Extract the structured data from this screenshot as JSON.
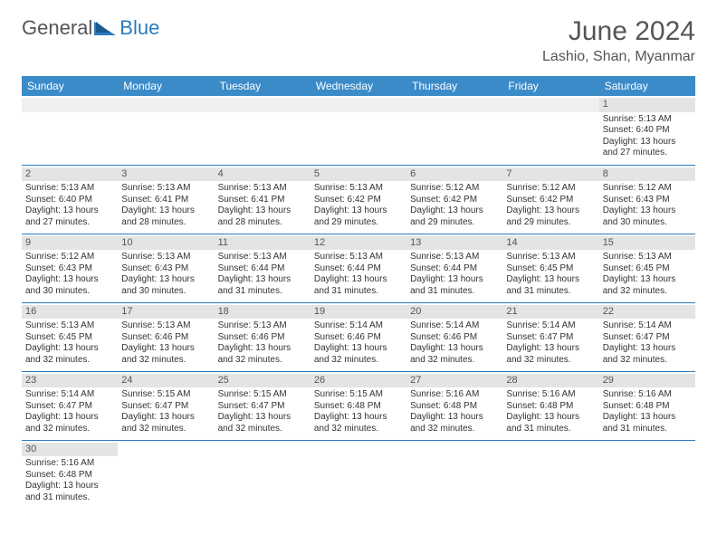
{
  "logo": {
    "part1": "General",
    "part2": "Blue"
  },
  "title": "June 2024",
  "location": "Lashio, Shan, Myanmar",
  "colors": {
    "header_bg": "#3b8bc9",
    "border": "#2b7bbf",
    "daynum_bg": "#e4e4e4",
    "text": "#333333",
    "title_text": "#555555"
  },
  "day_headers": [
    "Sunday",
    "Monday",
    "Tuesday",
    "Wednesday",
    "Thursday",
    "Friday",
    "Saturday"
  ],
  "weeks": [
    [
      null,
      null,
      null,
      null,
      null,
      null,
      {
        "n": "1",
        "sr": "Sunrise: 5:13 AM",
        "ss": "Sunset: 6:40 PM",
        "d1": "Daylight: 13 hours",
        "d2": "and 27 minutes."
      }
    ],
    [
      {
        "n": "2",
        "sr": "Sunrise: 5:13 AM",
        "ss": "Sunset: 6:40 PM",
        "d1": "Daylight: 13 hours",
        "d2": "and 27 minutes."
      },
      {
        "n": "3",
        "sr": "Sunrise: 5:13 AM",
        "ss": "Sunset: 6:41 PM",
        "d1": "Daylight: 13 hours",
        "d2": "and 28 minutes."
      },
      {
        "n": "4",
        "sr": "Sunrise: 5:13 AM",
        "ss": "Sunset: 6:41 PM",
        "d1": "Daylight: 13 hours",
        "d2": "and 28 minutes."
      },
      {
        "n": "5",
        "sr": "Sunrise: 5:13 AM",
        "ss": "Sunset: 6:42 PM",
        "d1": "Daylight: 13 hours",
        "d2": "and 29 minutes."
      },
      {
        "n": "6",
        "sr": "Sunrise: 5:12 AM",
        "ss": "Sunset: 6:42 PM",
        "d1": "Daylight: 13 hours",
        "d2": "and 29 minutes."
      },
      {
        "n": "7",
        "sr": "Sunrise: 5:12 AM",
        "ss": "Sunset: 6:42 PM",
        "d1": "Daylight: 13 hours",
        "d2": "and 29 minutes."
      },
      {
        "n": "8",
        "sr": "Sunrise: 5:12 AM",
        "ss": "Sunset: 6:43 PM",
        "d1": "Daylight: 13 hours",
        "d2": "and 30 minutes."
      }
    ],
    [
      {
        "n": "9",
        "sr": "Sunrise: 5:12 AM",
        "ss": "Sunset: 6:43 PM",
        "d1": "Daylight: 13 hours",
        "d2": "and 30 minutes."
      },
      {
        "n": "10",
        "sr": "Sunrise: 5:13 AM",
        "ss": "Sunset: 6:43 PM",
        "d1": "Daylight: 13 hours",
        "d2": "and 30 minutes."
      },
      {
        "n": "11",
        "sr": "Sunrise: 5:13 AM",
        "ss": "Sunset: 6:44 PM",
        "d1": "Daylight: 13 hours",
        "d2": "and 31 minutes."
      },
      {
        "n": "12",
        "sr": "Sunrise: 5:13 AM",
        "ss": "Sunset: 6:44 PM",
        "d1": "Daylight: 13 hours",
        "d2": "and 31 minutes."
      },
      {
        "n": "13",
        "sr": "Sunrise: 5:13 AM",
        "ss": "Sunset: 6:44 PM",
        "d1": "Daylight: 13 hours",
        "d2": "and 31 minutes."
      },
      {
        "n": "14",
        "sr": "Sunrise: 5:13 AM",
        "ss": "Sunset: 6:45 PM",
        "d1": "Daylight: 13 hours",
        "d2": "and 31 minutes."
      },
      {
        "n": "15",
        "sr": "Sunrise: 5:13 AM",
        "ss": "Sunset: 6:45 PM",
        "d1": "Daylight: 13 hours",
        "d2": "and 32 minutes."
      }
    ],
    [
      {
        "n": "16",
        "sr": "Sunrise: 5:13 AM",
        "ss": "Sunset: 6:45 PM",
        "d1": "Daylight: 13 hours",
        "d2": "and 32 minutes."
      },
      {
        "n": "17",
        "sr": "Sunrise: 5:13 AM",
        "ss": "Sunset: 6:46 PM",
        "d1": "Daylight: 13 hours",
        "d2": "and 32 minutes."
      },
      {
        "n": "18",
        "sr": "Sunrise: 5:13 AM",
        "ss": "Sunset: 6:46 PM",
        "d1": "Daylight: 13 hours",
        "d2": "and 32 minutes."
      },
      {
        "n": "19",
        "sr": "Sunrise: 5:14 AM",
        "ss": "Sunset: 6:46 PM",
        "d1": "Daylight: 13 hours",
        "d2": "and 32 minutes."
      },
      {
        "n": "20",
        "sr": "Sunrise: 5:14 AM",
        "ss": "Sunset: 6:46 PM",
        "d1": "Daylight: 13 hours",
        "d2": "and 32 minutes."
      },
      {
        "n": "21",
        "sr": "Sunrise: 5:14 AM",
        "ss": "Sunset: 6:47 PM",
        "d1": "Daylight: 13 hours",
        "d2": "and 32 minutes."
      },
      {
        "n": "22",
        "sr": "Sunrise: 5:14 AM",
        "ss": "Sunset: 6:47 PM",
        "d1": "Daylight: 13 hours",
        "d2": "and 32 minutes."
      }
    ],
    [
      {
        "n": "23",
        "sr": "Sunrise: 5:14 AM",
        "ss": "Sunset: 6:47 PM",
        "d1": "Daylight: 13 hours",
        "d2": "and 32 minutes."
      },
      {
        "n": "24",
        "sr": "Sunrise: 5:15 AM",
        "ss": "Sunset: 6:47 PM",
        "d1": "Daylight: 13 hours",
        "d2": "and 32 minutes."
      },
      {
        "n": "25",
        "sr": "Sunrise: 5:15 AM",
        "ss": "Sunset: 6:47 PM",
        "d1": "Daylight: 13 hours",
        "d2": "and 32 minutes."
      },
      {
        "n": "26",
        "sr": "Sunrise: 5:15 AM",
        "ss": "Sunset: 6:48 PM",
        "d1": "Daylight: 13 hours",
        "d2": "and 32 minutes."
      },
      {
        "n": "27",
        "sr": "Sunrise: 5:16 AM",
        "ss": "Sunset: 6:48 PM",
        "d1": "Daylight: 13 hours",
        "d2": "and 32 minutes."
      },
      {
        "n": "28",
        "sr": "Sunrise: 5:16 AM",
        "ss": "Sunset: 6:48 PM",
        "d1": "Daylight: 13 hours",
        "d2": "and 31 minutes."
      },
      {
        "n": "29",
        "sr": "Sunrise: 5:16 AM",
        "ss": "Sunset: 6:48 PM",
        "d1": "Daylight: 13 hours",
        "d2": "and 31 minutes."
      }
    ],
    [
      {
        "n": "30",
        "sr": "Sunrise: 5:16 AM",
        "ss": "Sunset: 6:48 PM",
        "d1": "Daylight: 13 hours",
        "d2": "and 31 minutes."
      },
      null,
      null,
      null,
      null,
      null,
      null
    ]
  ]
}
